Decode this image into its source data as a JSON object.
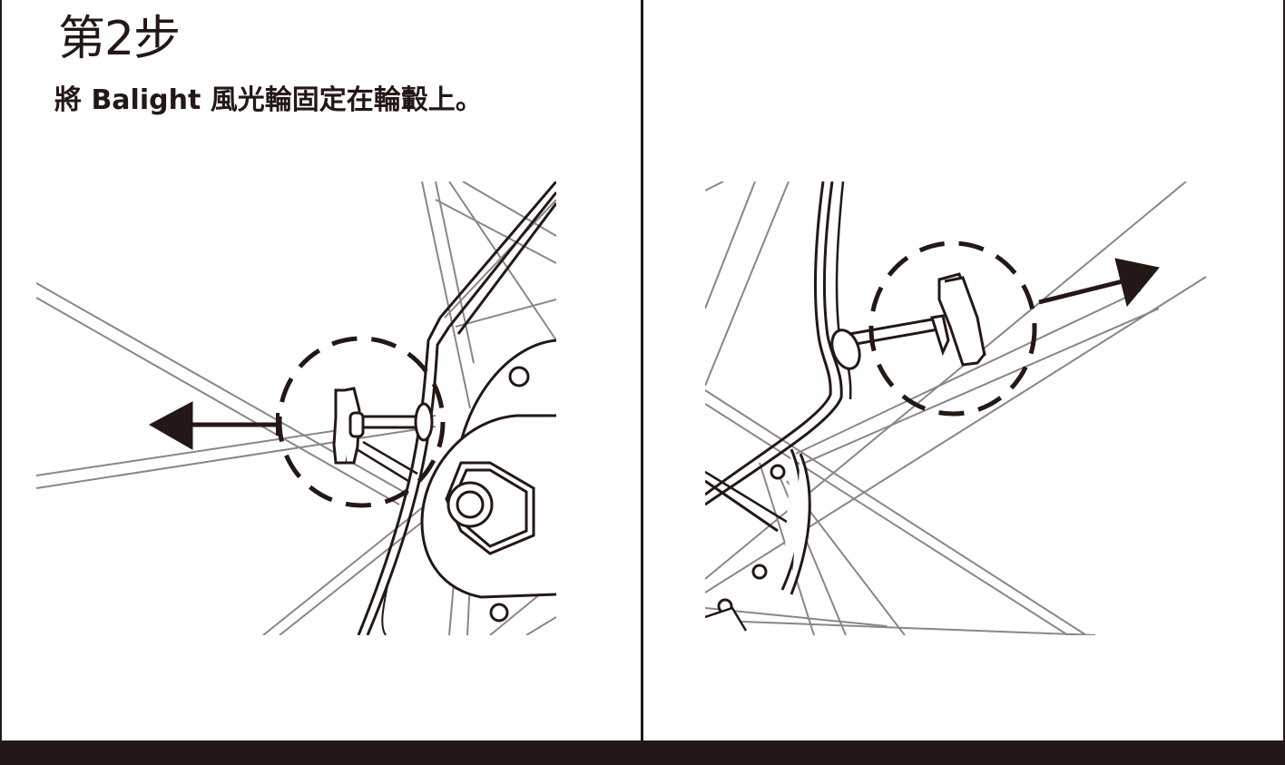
{
  "step": {
    "title": "第2步",
    "instruction": "將 Balight 風光輪固定在輪轂上。"
  },
  "panels": [
    {
      "name": "left-diagram",
      "arrow_direction": "left"
    },
    {
      "name": "right-diagram",
      "arrow_direction": "right"
    }
  ],
  "colors": {
    "ink": "#231815",
    "spoke": "#8a8685",
    "background": "#ffffff"
  }
}
